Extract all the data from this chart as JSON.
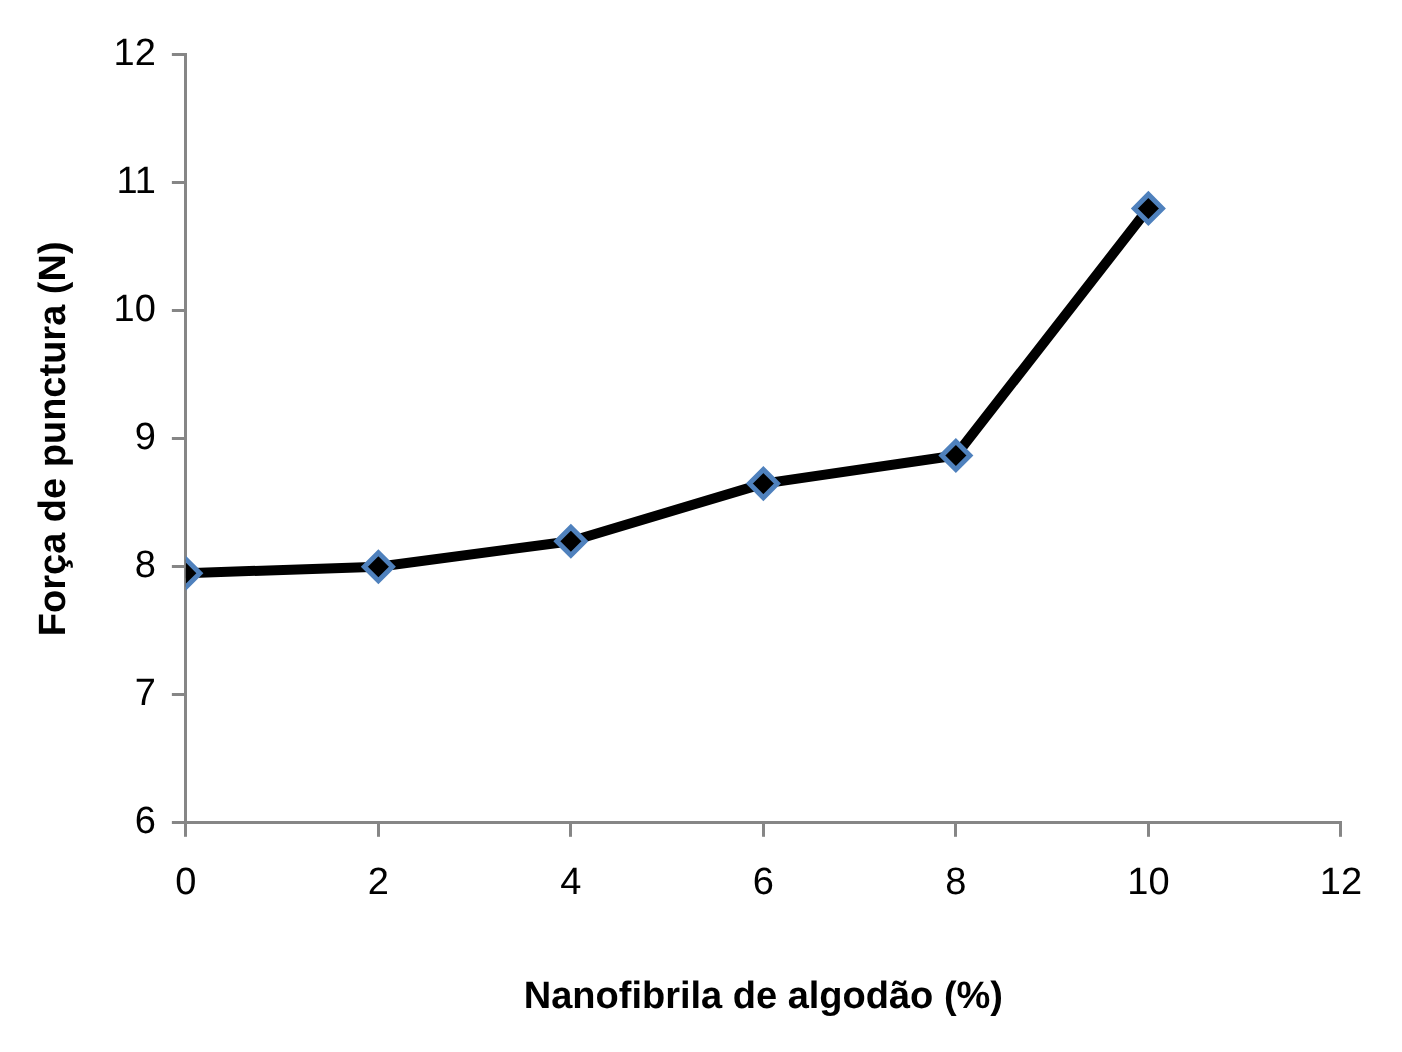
{
  "chart_data": {
    "type": "line",
    "xlabel": "Nanofibrila de algodão (%)",
    "ylabel": "Força de punctura (N)",
    "x": [
      0,
      2,
      4,
      6,
      8,
      10
    ],
    "series": [
      {
        "color": "#000000",
        "values": [
          7.95,
          8.0,
          8.2,
          8.65,
          8.87,
          10.8
        ]
      }
    ],
    "xlim": [
      0,
      12
    ],
    "xticks": [
      0,
      2,
      4,
      6,
      8,
      10,
      12
    ],
    "ylim": [
      6,
      12
    ],
    "yticks": [
      6,
      7,
      8,
      9,
      10,
      11,
      12
    ],
    "grid": false,
    "legend": false,
    "marker": "diamond",
    "line_style": "solid"
  }
}
